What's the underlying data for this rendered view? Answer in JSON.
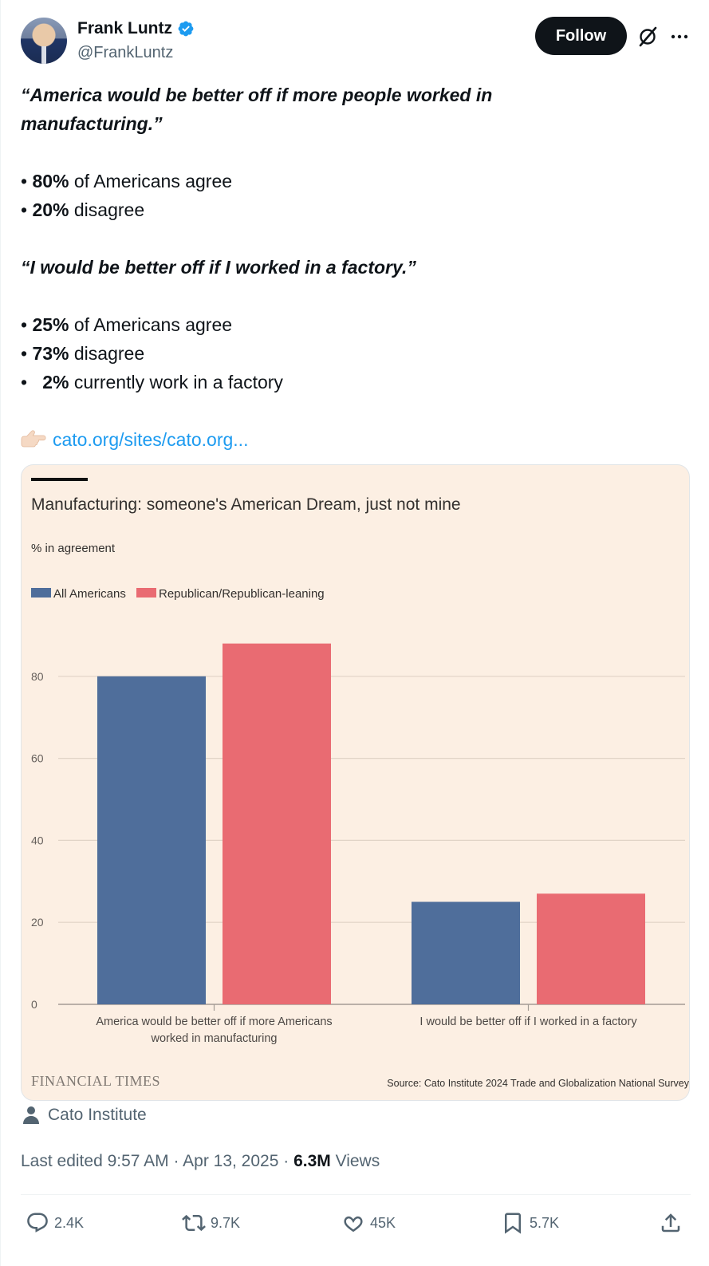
{
  "author": {
    "name": "Frank Luntz",
    "handle": "@FrankLuntz",
    "follow_label": "Follow"
  },
  "tweet": {
    "quote1": "“America would be better off if more people worked in",
    "quote1_cont": "manufacturing.”",
    "stats1": [
      {
        "bullet": "•",
        "pct": "80%",
        "text": " of Americans agree"
      },
      {
        "bullet": "•",
        "pct": "20%",
        "text": " disagree"
      }
    ],
    "quote2": "“I would be better off if I worked in a factory.”",
    "stats2": [
      {
        "bullet": "•",
        "pct": "25%",
        "text": " of Americans agree"
      },
      {
        "bullet": "•",
        "pct": "73%",
        "text": " disagree"
      },
      {
        "bullet": "•",
        "pct": "2%",
        "text": " currently work in a factory"
      }
    ],
    "link": "cato.org/sites/cato.org..."
  },
  "chart_data": {
    "type": "bar",
    "title": "Manufacturing: someone's American Dream, just not mine",
    "subtitle": "% in agreement",
    "categories": [
      [
        "America would be better off if more Americans",
        "worked in manufacturing"
      ],
      [
        "I would be better off if I worked in a factory"
      ]
    ],
    "series": [
      {
        "name": "All Americans",
        "color": "#4f6e9b",
        "values": [
          80,
          25
        ]
      },
      {
        "name": "Republican/Republican-leaning",
        "color": "#e96b72",
        "values": [
          88,
          27
        ]
      }
    ],
    "yticks": [
      0,
      20,
      40,
      60,
      80
    ],
    "ylim": [
      0,
      92
    ],
    "grid": true,
    "legend": "top-left",
    "brand": "FINANCIAL TIMES",
    "source": "Source: Cato Institute 2024 Trade and Globalization National Survey"
  },
  "attribution": "Cato Institute",
  "meta": {
    "edited": "Last edited 9:57 AM · Apr 13, 2025 · ",
    "views_count": "6.3M",
    "views_label": " Views"
  },
  "actions": {
    "replies": "2.4K",
    "reposts": "9.7K",
    "likes": "45K",
    "bookmarks": "5.7K"
  }
}
